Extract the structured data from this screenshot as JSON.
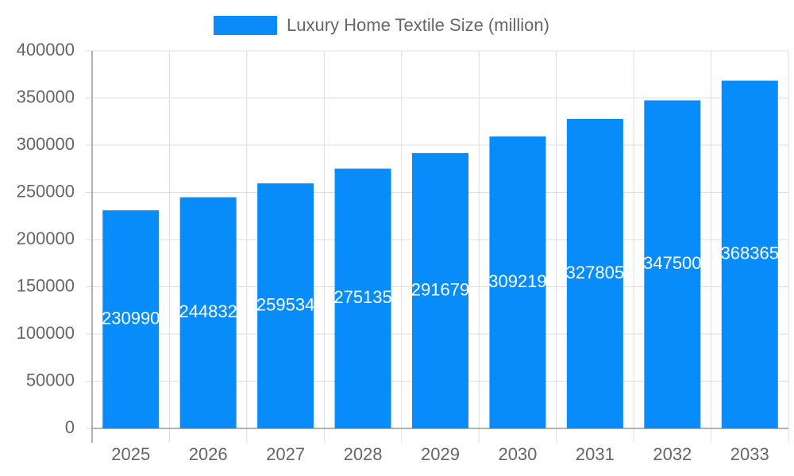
{
  "chart_data": {
    "type": "bar",
    "categories": [
      "2025",
      "2026",
      "2027",
      "2028",
      "2029",
      "2030",
      "2031",
      "2032",
      "2033"
    ],
    "series": [
      {
        "name": "Luxury Home Textile Size (million)",
        "color": "#078cfa",
        "values": [
          230990,
          244832,
          259534,
          275135,
          291679,
          309219,
          327805,
          347500,
          368365
        ]
      }
    ],
    "ylim": [
      0,
      400000
    ],
    "yticks": [
      0,
      50000,
      100000,
      150000,
      200000,
      250000,
      300000,
      350000,
      400000
    ],
    "grid": true,
    "legend": "top"
  }
}
